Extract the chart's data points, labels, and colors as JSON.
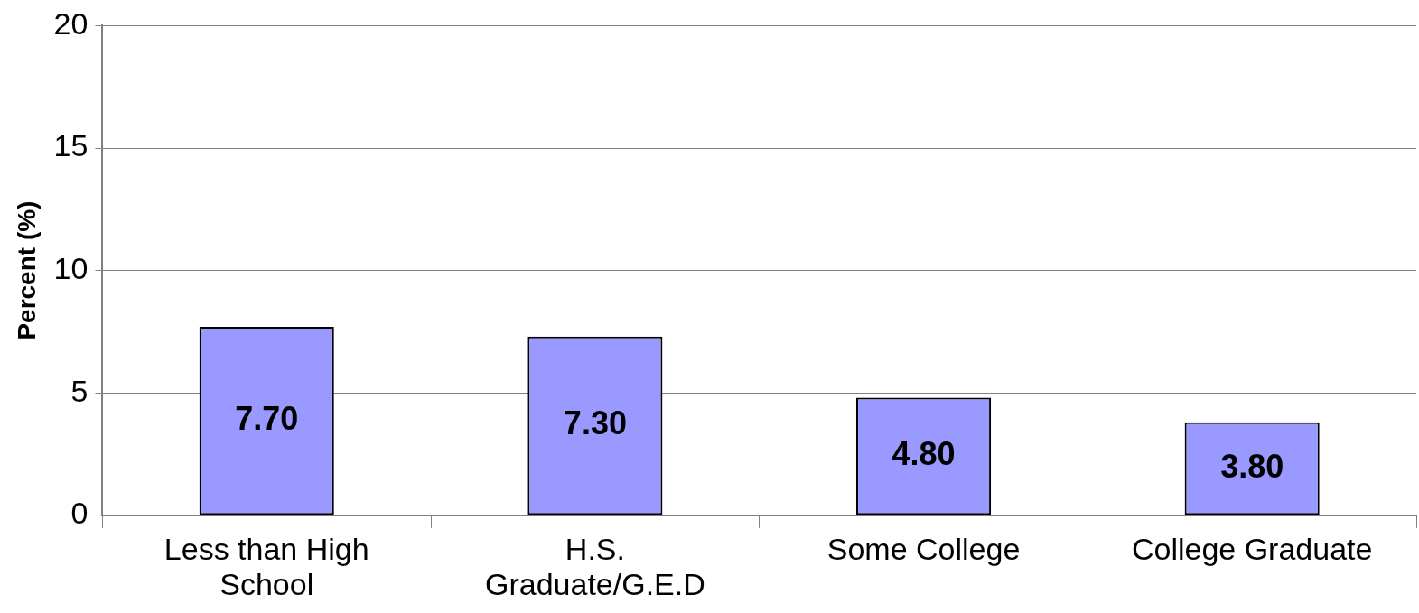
{
  "chart_data": {
    "type": "bar",
    "ylabel": "Percent (%)",
    "categories": [
      "Less than High School",
      "H.S. Graduate/G.E.D",
      "Some College",
      "College Graduate"
    ],
    "values": [
      7.7,
      7.3,
      4.8,
      3.8
    ],
    "value_labels": [
      "7.70",
      "7.30",
      "4.80",
      "3.80"
    ],
    "color": "#9999ff",
    "ylim": [
      0,
      20
    ],
    "yticks": [
      0,
      5,
      10,
      15,
      20
    ],
    "grid": "y",
    "legend": false
  }
}
